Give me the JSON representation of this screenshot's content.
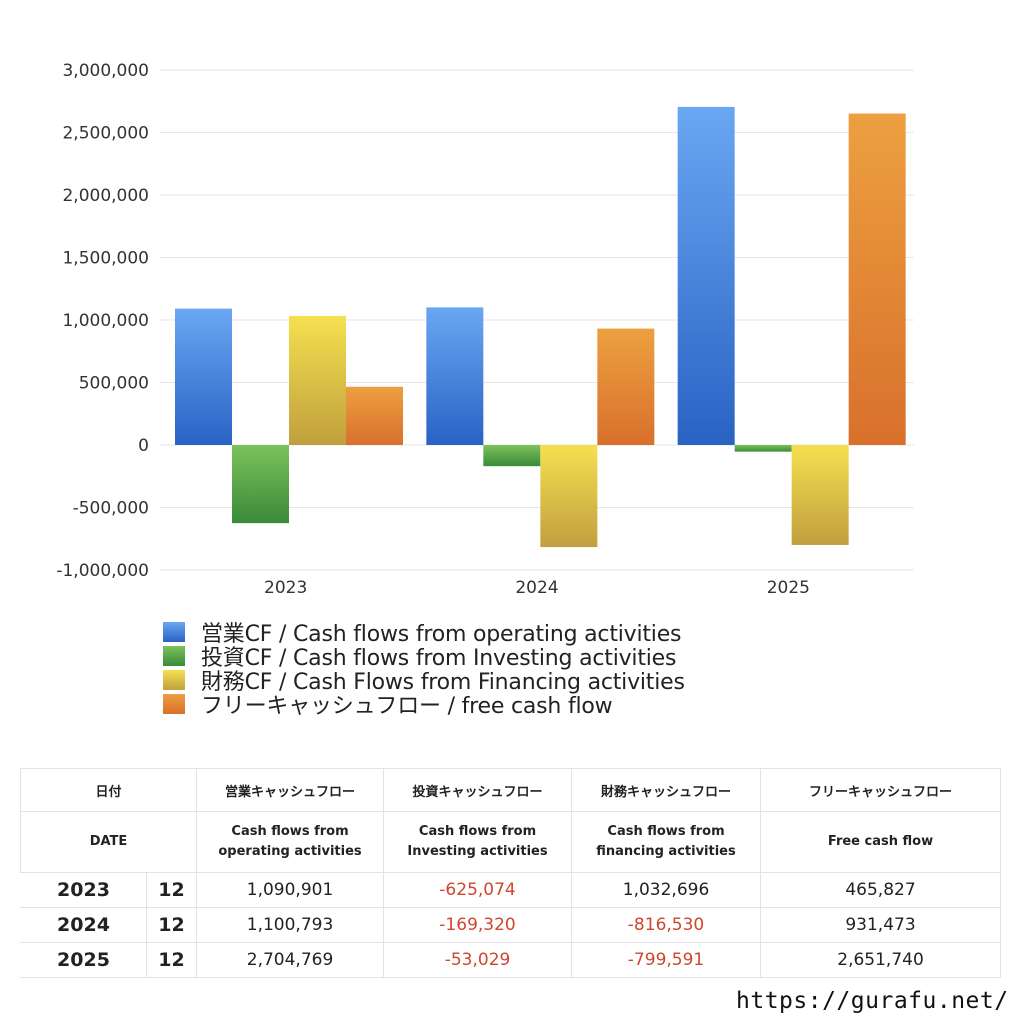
{
  "chart_data": {
    "type": "bar",
    "categories": [
      "2023",
      "2024",
      "2025"
    ],
    "series": [
      {
        "name": "営業CF / Cash flows from operating activities",
        "values": [
          1090901,
          1100793,
          2704769
        ],
        "color": "#3a78d8"
      },
      {
        "name": "投資CF / Cash flows from Investing activities",
        "values": [
          -625074,
          -169320,
          -53029
        ],
        "color": "#4ea24a"
      },
      {
        "name": "財務CF / Cash Flows from Financing activities",
        "values": [
          1032696,
          -816530,
          -799591
        ],
        "color": "#e2c844"
      },
      {
        "name": "フリーキャッシュフロー / free cash flow",
        "values": [
          465827,
          931473,
          2651740
        ],
        "color": "#e0822e"
      }
    ],
    "ylim": [
      -1000000,
      3000000
    ],
    "yticks": [
      3000000,
      2500000,
      2000000,
      1500000,
      1000000,
      500000,
      0,
      -500000,
      -1000000
    ],
    "ytick_labels": [
      "3,000,000",
      "2,500,000",
      "2,000,000",
      "1,500,000",
      "1,000,000",
      "500,000",
      "0",
      "-500,000",
      "-1,000,000"
    ],
    "grid": true,
    "legend_position": "bottom"
  },
  "table": {
    "header_jp": [
      "日付",
      "営業キャッシュフロー",
      "投資キャッシュフロー",
      "財務キャッシュフロー",
      "フリーキャッシュフロー"
    ],
    "header_en": {
      "date": "DATE",
      "operating": [
        "Cash flows from",
        "operating activities"
      ],
      "investing": [
        "Cash flows from",
        "Investing activities"
      ],
      "financing": [
        "Cash flows from",
        "financing activities"
      ],
      "free": "Free cash flow"
    },
    "rows": [
      {
        "year": "2023",
        "month": "12",
        "operating": "1,090,901",
        "investing": "-625,074",
        "financing": "1,032,696",
        "free": "465,827"
      },
      {
        "year": "2024",
        "month": "12",
        "operating": "1,100,793",
        "investing": "-169,320",
        "financing": "-816,530",
        "free": "931,473"
      },
      {
        "year": "2025",
        "month": "12",
        "operating": "2,704,769",
        "investing": "-53,029",
        "financing": "-799,591",
        "free": "2,651,740"
      }
    ],
    "negative_color": "#d0462c"
  },
  "footer": {
    "url": "https://gurafu.net/"
  }
}
